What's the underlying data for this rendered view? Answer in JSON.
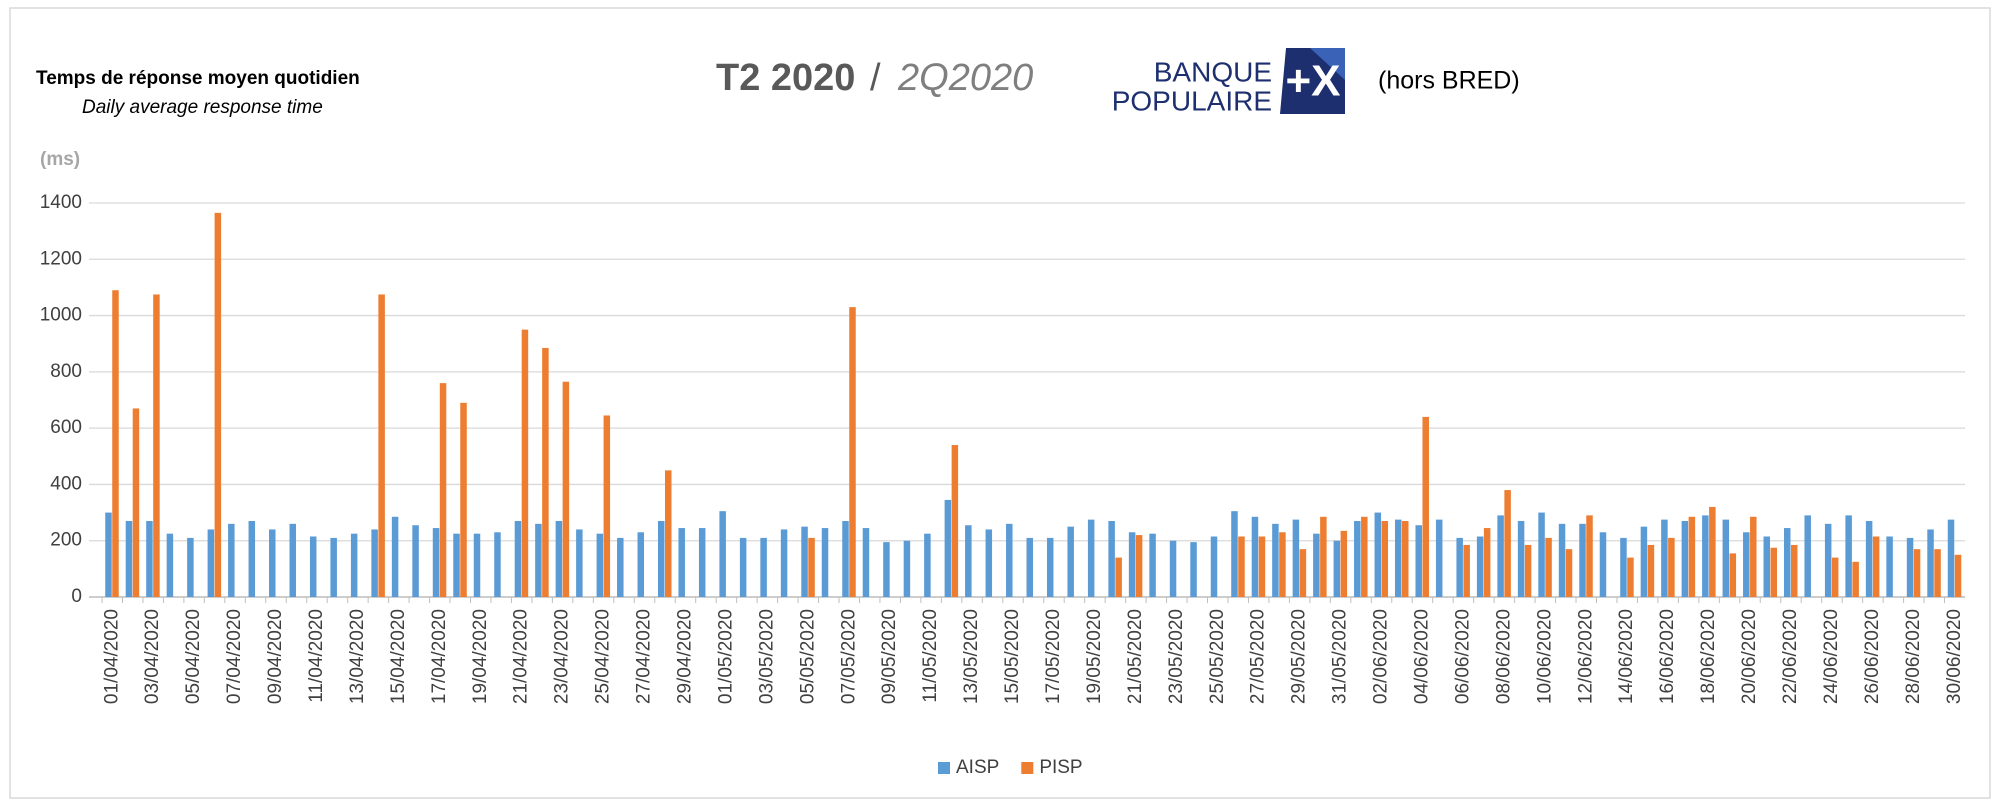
{
  "chart_data": {
    "type": "bar",
    "title": "Temps de réponse moyen quotidien",
    "subtitle": "Daily average response time",
    "period_fr": "T2 2020",
    "separator": "/",
    "period_en": "2Q2020",
    "logo_line1": "BANQUE",
    "logo_line2": "POPULAIRE",
    "logo_mark": "+X",
    "note": "(hors BRED)",
    "y_label": "(ms)",
    "categories": [
      "01/04/2020",
      null,
      "03/04/2020",
      null,
      "05/04/2020",
      null,
      "07/04/2020",
      null,
      "09/04/2020",
      null,
      "11/04/2020",
      null,
      "13/04/2020",
      null,
      "15/04/2020",
      null,
      "17/04/2020",
      null,
      "19/04/2020",
      null,
      "21/04/2020",
      null,
      "23/04/2020",
      null,
      "25/04/2020",
      null,
      "27/04/2020",
      null,
      "29/04/2020",
      null,
      "01/05/2020",
      null,
      "03/05/2020",
      null,
      "05/05/2020",
      null,
      "07/05/2020",
      null,
      "09/05/2020",
      null,
      "11/05/2020",
      null,
      "13/05/2020",
      null,
      "15/05/2020",
      null,
      "17/05/2020",
      null,
      "19/05/2020",
      null,
      "21/05/2020",
      null,
      "23/05/2020",
      null,
      "25/05/2020",
      null,
      "27/05/2020",
      null,
      "29/05/2020",
      null,
      "31/05/2020",
      null,
      "02/06/2020",
      null,
      "04/06/2020",
      null,
      "06/06/2020",
      null,
      "08/06/2020",
      null,
      "10/06/2020",
      null,
      "12/06/2020",
      null,
      "14/06/2020",
      null,
      "16/06/2020",
      null,
      "18/06/2020",
      null,
      "20/06/2020",
      null,
      "22/06/2020",
      null,
      "24/06/2020",
      null,
      "26/06/2020",
      null,
      "28/06/2020",
      null,
      "30/06/2020"
    ],
    "series": [
      {
        "name": "AISP",
        "color": "#5b9bd5",
        "values": [
          300,
          270,
          270,
          225,
          210,
          240,
          260,
          270,
          240,
          260,
          215,
          210,
          225,
          240,
          285,
          255,
          245,
          225,
          225,
          230,
          270,
          260,
          270,
          240,
          225,
          210,
          230,
          270,
          245,
          245,
          305,
          210,
          210,
          240,
          250,
          245,
          270,
          245,
          195,
          200,
          225,
          345,
          255,
          240,
          260,
          210,
          210,
          250,
          275,
          270,
          230,
          225,
          200,
          195,
          215,
          305,
          285,
          260,
          275,
          225,
          200,
          270,
          300,
          275,
          255,
          275,
          210,
          215,
          290,
          270,
          300,
          260,
          260,
          230,
          210,
          250,
          275,
          270,
          290,
          275,
          230,
          215,
          245,
          290,
          260,
          290,
          270,
          215,
          210,
          240,
          275
        ]
      },
      {
        "name": "PISP",
        "color": "#ed7d31",
        "values": [
          1090,
          670,
          1075,
          null,
          null,
          1365,
          null,
          null,
          null,
          null,
          null,
          null,
          null,
          1075,
          null,
          null,
          760,
          690,
          null,
          null,
          950,
          885,
          765,
          null,
          645,
          null,
          null,
          450,
          null,
          null,
          null,
          null,
          null,
          null,
          210,
          null,
          1030,
          null,
          null,
          null,
          null,
          540,
          null,
          null,
          null,
          null,
          null,
          null,
          null,
          140,
          220,
          null,
          null,
          null,
          null,
          215,
          215,
          230,
          170,
          285,
          235,
          285,
          270,
          270,
          640,
          null,
          185,
          245,
          380,
          185,
          210,
          170,
          290,
          null,
          140,
          185,
          210,
          285,
          320,
          155,
          285,
          175,
          185,
          null,
          140,
          125,
          215,
          null,
          170,
          170,
          150
        ]
      }
    ],
    "ylim": [
      0,
      1400
    ],
    "yticks": [
      0,
      200,
      400,
      600,
      800,
      1000,
      1200,
      1400
    ],
    "grid": true,
    "legend": "bottom"
  }
}
